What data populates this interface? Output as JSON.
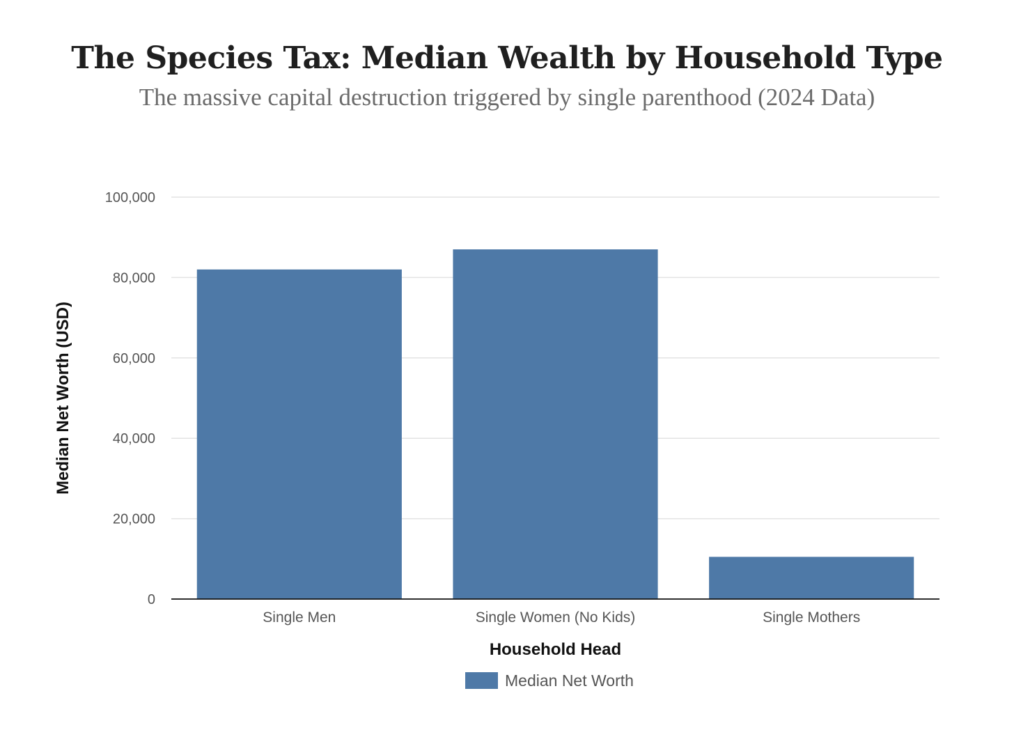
{
  "chart_data": {
    "type": "bar",
    "title": "The Species Tax: Median Wealth by Household Type",
    "subtitle": "The massive capital destruction triggered by single parenthood (2024 Data)",
    "xlabel": "Household Head",
    "ylabel": "Median Net Worth (USD)",
    "categories": [
      "Single Men",
      "Single Women (No Kids)",
      "Single Mothers"
    ],
    "series": [
      {
        "name": "Median Net Worth",
        "values": [
          82000,
          87000,
          10500
        ],
        "color": "#4e79a7"
      }
    ],
    "ylim": [
      0,
      100000
    ],
    "yticks": [
      0,
      20000,
      40000,
      60000,
      80000,
      100000
    ],
    "ytick_labels": [
      "0",
      "20,000",
      "40,000",
      "60,000",
      "80,000",
      "100,000"
    ],
    "grid": true,
    "legend_position": "bottom-center"
  }
}
